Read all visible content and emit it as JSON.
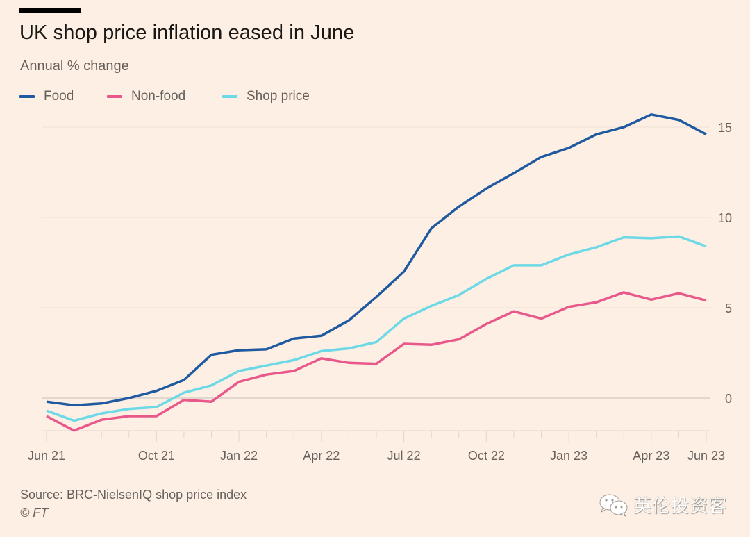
{
  "header": {
    "title": "UK shop price inflation eased in June",
    "subtitle": "Annual % change"
  },
  "footer": {
    "source": "Source: BRC-NielsenIQ shop price index",
    "copyright": "© FT"
  },
  "watermark": {
    "icon": "wechat-icon",
    "text": "英伦投资客"
  },
  "chart_data": {
    "type": "line",
    "title": "UK shop price inflation eased in June",
    "subtitle": "Annual % change",
    "xlabel": "",
    "ylabel": "Annual % change",
    "x": [
      "Jun 21",
      "Jul 21",
      "Aug 21",
      "Sep 21",
      "Oct 21",
      "Nov 21",
      "Dec 21",
      "Jan 22",
      "Feb 22",
      "Mar 22",
      "Apr 22",
      "May 22",
      "Jun 22",
      "Jul 22",
      "Aug 22",
      "Sep 22",
      "Oct 22",
      "Nov 22",
      "Dec 22",
      "Jan 23",
      "Feb 23",
      "Mar 23",
      "Apr 23",
      "May 23",
      "Jun 23"
    ],
    "x_tick_labels": [
      {
        "index": 0,
        "label": "Jun 21"
      },
      {
        "index": 4,
        "label": "Oct 21"
      },
      {
        "index": 7,
        "label": "Jan 22"
      },
      {
        "index": 10,
        "label": "Apr 22"
      },
      {
        "index": 13,
        "label": "Jul 22"
      },
      {
        "index": 16,
        "label": "Oct 22"
      },
      {
        "index": 19,
        "label": "Jan 23"
      },
      {
        "index": 22,
        "label": "Apr 23"
      },
      {
        "index": 24,
        "label": "Jun 23"
      }
    ],
    "y_ticks": [
      0,
      5,
      10,
      15
    ],
    "ylim": [
      -1.8,
      16
    ],
    "grid": true,
    "y_axis_side": "right",
    "legend_position": "top-left",
    "series": [
      {
        "name": "Food",
        "color": "#1f5aa0",
        "values": [
          -0.2,
          -0.4,
          -0.3,
          0.0,
          0.4,
          1.0,
          2.4,
          2.65,
          2.7,
          3.3,
          3.45,
          4.3,
          5.6,
          7.0,
          9.4,
          10.6,
          11.6,
          12.45,
          13.35,
          13.85,
          14.6,
          15.0,
          15.7,
          15.4,
          14.6
        ]
      },
      {
        "name": "Non-food",
        "color": "#e8588a",
        "values": [
          -1.0,
          -1.8,
          -1.2,
          -1.0,
          -1.0,
          -0.1,
          -0.2,
          0.9,
          1.3,
          1.5,
          2.2,
          1.95,
          1.9,
          3.0,
          2.95,
          3.25,
          4.1,
          4.8,
          4.4,
          5.05,
          5.3,
          5.85,
          5.45,
          5.8,
          5.4
        ]
      },
      {
        "name": "Shop price",
        "color": "#6dd9e6",
        "values": [
          -0.7,
          -1.25,
          -0.85,
          -0.6,
          -0.5,
          0.3,
          0.7,
          1.5,
          1.8,
          2.1,
          2.6,
          2.75,
          3.1,
          4.4,
          5.1,
          5.7,
          6.6,
          7.35,
          7.35,
          7.95,
          8.35,
          8.9,
          8.85,
          8.95,
          8.4
        ]
      }
    ]
  }
}
